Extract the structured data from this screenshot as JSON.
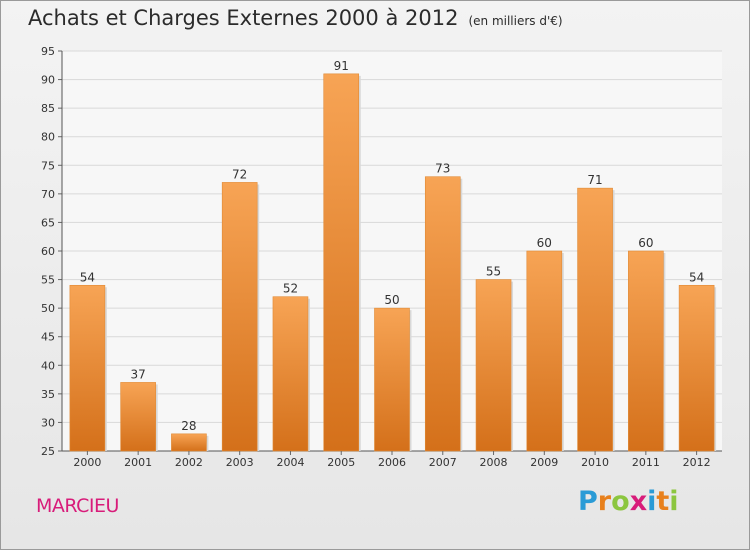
{
  "header": {
    "title": "Achats et Charges Externes 2000 à 2012",
    "unit": "(en milliers d'€)"
  },
  "footer": {
    "location": "MARCIEU",
    "logo": {
      "letters": [
        "P",
        "r",
        "o",
        "x",
        "i",
        "t",
        "i"
      ],
      "colors": [
        "#2a9bd6",
        "#e8801c",
        "#8cc63f",
        "#d81c7a",
        "#2a9bd6",
        "#e8801c",
        "#8cc63f"
      ]
    }
  },
  "chart_data": {
    "type": "bar",
    "categories": [
      "2000",
      "2001",
      "2002",
      "2003",
      "2004",
      "2005",
      "2006",
      "2007",
      "2008",
      "2009",
      "2010",
      "2011",
      "2012"
    ],
    "values": [
      54,
      37,
      28,
      72,
      52,
      91,
      50,
      73,
      55,
      60,
      71,
      60,
      54
    ],
    "ylim": [
      25,
      95
    ],
    "yticks": [
      25,
      30,
      35,
      40,
      45,
      50,
      55,
      60,
      65,
      70,
      75,
      80,
      85,
      90,
      95
    ],
    "grid": true,
    "colors": {
      "bar_top": "#f7a455",
      "bar_bottom": "#d4701a"
    }
  }
}
